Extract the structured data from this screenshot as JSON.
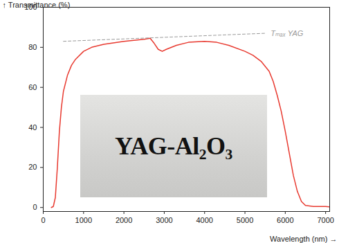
{
  "chart_data": {
    "type": "line",
    "x_label": "Wavelength (nm)",
    "y_label": "Transmittance (%)",
    "xlim": [
      0,
      7100
    ],
    "xticks": [
      0,
      1000,
      2000,
      3000,
      4000,
      5000,
      6000,
      7000
    ],
    "ylim": [
      -2,
      100
    ],
    "yticks": [
      0,
      20,
      40,
      60,
      80,
      100
    ],
    "grid": false,
    "annotations": [
      "YAG-Al₂O₃"
    ],
    "series": [
      {
        "color": "#e8392f",
        "line_style": "solid",
        "x": [
          200,
          250,
          300,
          350,
          400,
          450,
          500,
          600,
          700,
          800,
          1000,
          1200,
          1500,
          2000,
          2500,
          2650,
          2750,
          2850,
          2950,
          3050,
          3300,
          3600,
          4000,
          4300,
          4600,
          5000,
          5200,
          5400,
          5600,
          5700,
          5800,
          5900,
          6000,
          6100,
          6200,
          6300,
          6400,
          6500,
          6700,
          7000,
          7100
        ],
        "values": [
          0,
          0.5,
          5,
          20,
          38,
          50,
          58,
          66,
          71,
          74,
          78,
          80,
          81.5,
          83,
          84,
          84.5,
          82,
          79,
          78,
          79,
          81,
          82.5,
          83,
          82.5,
          81,
          78,
          76,
          73,
          68,
          63,
          56,
          48,
          38,
          27,
          16,
          8,
          3,
          1,
          0.5,
          0.5,
          0.3
        ]
      },
      {
        "name": "Tₘₐₓ YAG",
        "color": "#999999",
        "line_style": "dashed",
        "x": [
          500,
          5500
        ],
        "values": [
          83,
          87
        ]
      }
    ]
  }
}
